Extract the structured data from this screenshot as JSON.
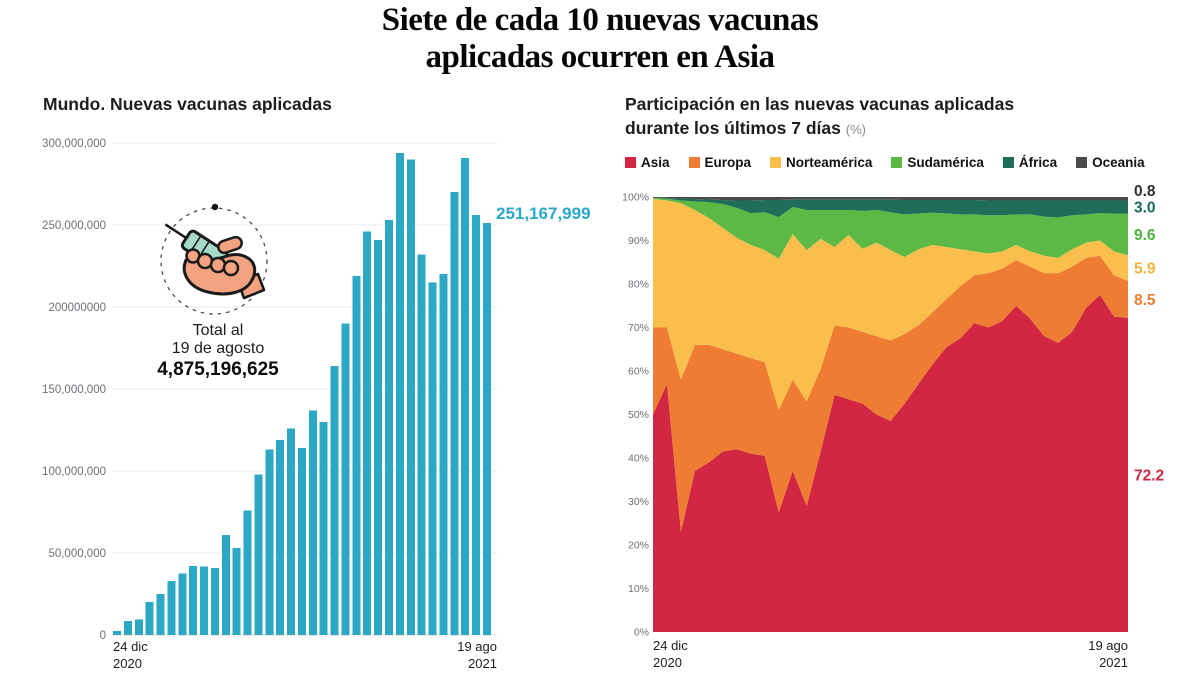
{
  "headline": {
    "line1": "Siete de cada 10 nuevas vacunas",
    "line2": "aplicadas ocurren en Asia"
  },
  "left_chart": {
    "title": "Mundo. Nuevas vacunas aplicadas",
    "annotation": {
      "line1": "Total al",
      "line2": "19 de agosto",
      "total": "4,875,196,625"
    },
    "last_value_label": "251,167,999",
    "x_start": {
      "line1": "24 dic",
      "line2": "2020"
    },
    "x_end": {
      "line1": "19 ago",
      "line2": "2021"
    },
    "y_ticks": [
      {
        "label": "300,000,000",
        "value": 300
      },
      {
        "label": "250,000,000",
        "value": 250
      },
      {
        "label": "200000000",
        "value": 200
      },
      {
        "label": "150,000,000",
        "value": 150
      },
      {
        "label": "100,000,000",
        "value": 100
      },
      {
        "label": "50,000,000",
        "value": 50
      },
      {
        "label": "0",
        "value": 0
      }
    ],
    "bar_color": "#2CA7C4"
  },
  "right_chart": {
    "title_line1": "Participación en las nuevas vacunas aplicadas",
    "title_line2": "durante los últimos 7 días",
    "title_suffix": "(%)",
    "y_tick_labels": [
      "0%",
      "10%",
      "20%",
      "30%",
      "40%",
      "50%",
      "60%",
      "70%",
      "80%",
      "90%",
      "100%"
    ],
    "x_start": {
      "line1": "24 dic",
      "line2": "2020"
    },
    "x_end": {
      "line1": "19 ago",
      "line2": "2021"
    }
  },
  "chart_data": [
    {
      "type": "bar",
      "title": "Mundo. Nuevas vacunas aplicadas",
      "xlabel": "",
      "ylabel": "",
      "x_range": [
        "24 dic 2020",
        "19 ago 2021"
      ],
      "ylim_millions": [
        0,
        300
      ],
      "unit": "doses (millions), weekly",
      "values_millions": [
        2.4,
        8.4,
        9.4,
        20,
        25,
        33,
        37.5,
        42,
        41.7,
        41,
        61,
        53,
        76,
        98,
        113,
        119,
        126,
        114,
        137,
        130,
        164,
        190,
        219,
        246,
        241,
        253,
        294,
        290,
        232,
        215,
        220,
        270,
        291,
        256,
        251.167999
      ],
      "last_bar_value": 251167999,
      "annotation_total_label": "Total al 19 de agosto",
      "annotation_total_value": 4875196625,
      "grid": true,
      "bar_color": "#2CA7C4"
    },
    {
      "type": "area",
      "stacked": true,
      "title": "Participación en las nuevas vacunas aplicadas durante los últimos 7 días (%)",
      "x_range": [
        "24 dic 2020",
        "19 ago 2021"
      ],
      "ylim": [
        0,
        100
      ],
      "legend_position": "top",
      "series": [
        {
          "name": "Asia",
          "color": "#D22742",
          "label_color": "#D22742",
          "end_label": "72.2",
          "values": [
            50,
            57,
            23,
            37,
            39,
            41.5,
            42,
            41,
            40.5,
            27.5,
            37,
            29,
            41.5,
            54.5,
            53.5,
            52.5,
            50,
            48.5,
            52.5,
            57,
            61.5,
            65.5,
            67.5,
            71,
            70,
            71.5,
            75,
            72,
            68,
            66.5,
            69,
            74.5,
            77.5,
            72.5,
            72.2
          ]
        },
        {
          "name": "Europa",
          "color": "#EE7D33",
          "label_color": "#ED7D31",
          "end_label": "8.5",
          "values": [
            20,
            13,
            35,
            29,
            27,
            23.5,
            22,
            22,
            21.5,
            23.5,
            21,
            24,
            19,
            16,
            16.5,
            16.5,
            18,
            18.5,
            16,
            13.5,
            12,
            11,
            12,
            11,
            12.5,
            12,
            10.5,
            12,
            14.5,
            16,
            15,
            11.5,
            9,
            9.5,
            8.5
          ]
        },
        {
          "name": "Norteamérica",
          "color": "#F9BE4B",
          "label_color": "#F2B23C",
          "end_label": "5.9",
          "values": [
            29.6,
            29.2,
            40.6,
            31,
            29.2,
            27.9,
            26.6,
            26,
            25.8,
            34.8,
            33.5,
            34.8,
            29.9,
            18,
            21.3,
            19.1,
            21.5,
            20.8,
            17.7,
            17.5,
            15.5,
            12,
            8.5,
            5.5,
            4.5,
            4,
            3.5,
            3.5,
            4,
            3.5,
            4,
            3.5,
            3.5,
            5.5,
            5.9
          ]
        },
        {
          "name": "Sudamérica",
          "color": "#5CB946",
          "label_color": "#4EB53C",
          "end_label": "9.6",
          "values": [
            0.2,
            0.4,
            0.6,
            2,
            3.6,
            5.5,
            6.9,
            7.3,
            8.7,
            9.6,
            6.2,
            9.2,
            6.6,
            8.5,
            5.7,
            8.7,
            7.5,
            8.7,
            9.8,
            8.2,
            7.4,
            7.7,
            8,
            8.5,
            8.8,
            8.3,
            7,
            8.5,
            9,
            9.3,
            7.8,
            6.5,
            6.3,
            8.7,
            9.6
          ]
        },
        {
          "name": "África",
          "color": "#1F6E59",
          "label_color": "#17695B",
          "end_label": "3.0",
          "values": [
            0.1,
            0.2,
            0.4,
            0.5,
            0.6,
            0.9,
            1.7,
            2.9,
            2.8,
            3.9,
            1.7,
            2.4,
            2.4,
            2.4,
            2.4,
            2.6,
            2.4,
            2.9,
            3.3,
            3.1,
            2.9,
            3.1,
            3.3,
            3.3,
            3.4,
            3.4,
            3.2,
            3.2,
            3.7,
            3.9,
            3.4,
            3.2,
            2.9,
            3,
            3
          ]
        },
        {
          "name": "Oceania",
          "color": "#4A4A4A",
          "label_color": "#2E2E2E",
          "end_label": "0.8",
          "values": [
            0.1,
            0.2,
            0.4,
            0.5,
            0.6,
            0.7,
            0.8,
            0.8,
            0.7,
            0.7,
            0.6,
            0.6,
            0.6,
            0.6,
            0.6,
            0.6,
            0.6,
            0.6,
            0.7,
            0.7,
            0.7,
            0.7,
            0.7,
            0.7,
            0.8,
            0.8,
            0.8,
            0.8,
            0.8,
            0.8,
            0.8,
            0.8,
            0.8,
            0.8,
            0.8
          ]
        }
      ]
    }
  ]
}
